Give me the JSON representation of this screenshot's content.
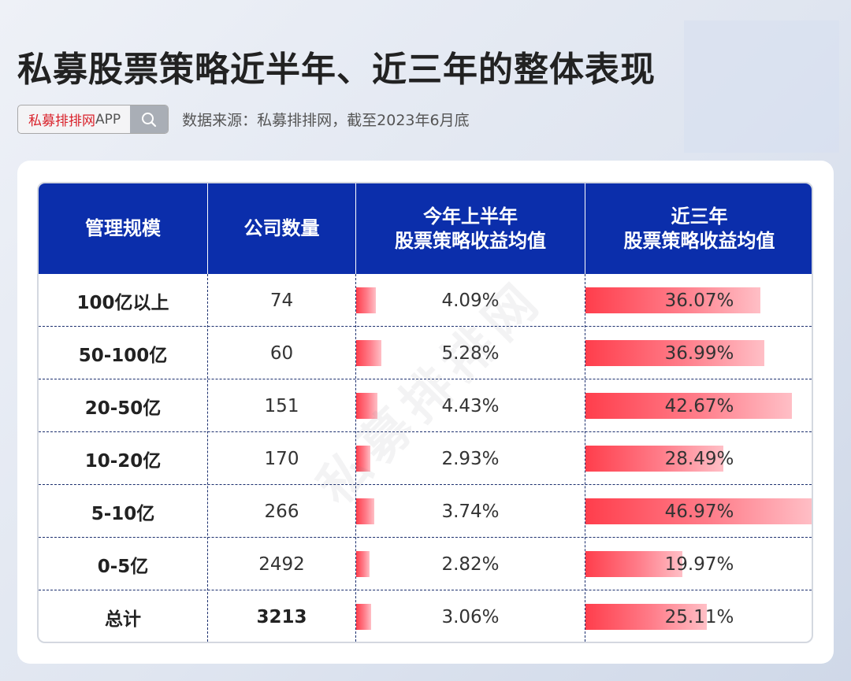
{
  "title": "私募股票策略近半年、近三年的整体表现",
  "search": {
    "brand": "私募排排网",
    "suffix": "APP"
  },
  "source_note": "数据来源：私募排排网，截至2023年6月底",
  "watermark": "私募排排网",
  "headers": {
    "scale": "管理规模",
    "count": "公司数量",
    "h1_line1": "今年上半年",
    "h1_line2": "股票策略收益均值",
    "y3_line1": "近三年",
    "y3_line2": "股票策略收益均值"
  },
  "colors": {
    "header_bg": "#0b2eab",
    "bar_start": "#ff3e4c",
    "bar_end": "#ffbfc6",
    "brand_red": "#d9212a"
  },
  "chart_data": {
    "type": "table",
    "columns": [
      "管理规模",
      "公司数量",
      "今年上半年股票策略收益均值",
      "近三年股票策略收益均值"
    ],
    "rows": [
      {
        "scale": "100亿以上",
        "count": "74",
        "h1": "4.09%",
        "y3": "36.07%",
        "h1_value": 4.09,
        "y3_value": 36.07
      },
      {
        "scale": "50-100亿",
        "count": "60",
        "h1": "5.28%",
        "y3": "36.99%",
        "h1_value": 5.28,
        "y3_value": 36.99
      },
      {
        "scale": "20-50亿",
        "count": "151",
        "h1": "4.43%",
        "y3": "42.67%",
        "h1_value": 4.43,
        "y3_value": 42.67
      },
      {
        "scale": "10-20亿",
        "count": "170",
        "h1": "2.93%",
        "y3": "28.49%",
        "h1_value": 2.93,
        "y3_value": 28.49
      },
      {
        "scale": "5-10亿",
        "count": "266",
        "h1": "3.74%",
        "y3": "46.97%",
        "h1_value": 3.74,
        "y3_value": 46.97
      },
      {
        "scale": "0-5亿",
        "count": "2492",
        "h1": "2.82%",
        "y3": "19.97%",
        "h1_value": 2.82,
        "y3_value": 19.97
      }
    ],
    "total": {
      "scale": "总计",
      "count": "3213",
      "h1": "3.06%",
      "y3": "25.11%",
      "h1_value": 3.06,
      "y3_value": 25.11
    }
  }
}
